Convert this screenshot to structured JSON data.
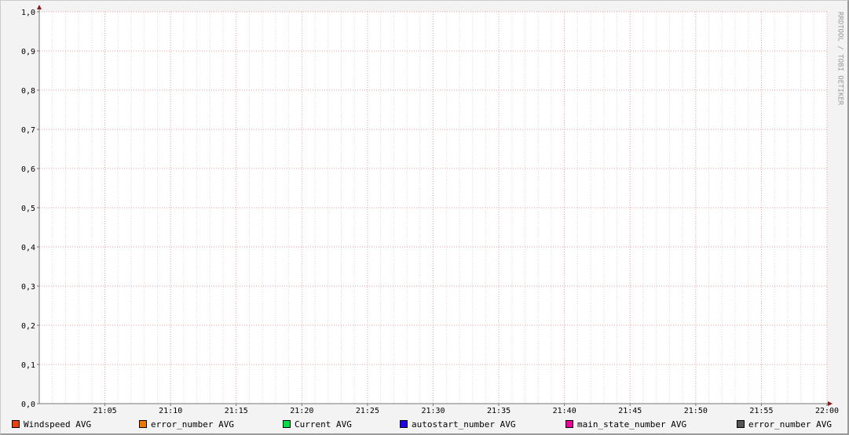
{
  "chart_data": {
    "type": "line",
    "x_ticks": [
      "21:05",
      "21:10",
      "21:15",
      "21:20",
      "21:25",
      "21:30",
      "21:35",
      "21:40",
      "21:45",
      "21:50",
      "21:55",
      "22:00"
    ],
    "xlim": [
      "21:00",
      "22:00"
    ],
    "y_ticks": [
      "0,0",
      "0,1",
      "0,2",
      "0,3",
      "0,4",
      "0,5",
      "0,6",
      "0,7",
      "0,8",
      "0,9",
      "1,0"
    ],
    "ylim": [
      0,
      1
    ],
    "grid": true,
    "legend_position": "bottom",
    "watermark": "RRDTOOL / TOBI OETIKER",
    "series": [
      {
        "name": "Windspeed AVG",
        "color": "#E8400F",
        "values": []
      },
      {
        "name": "error_number AVG",
        "color": "#EC7800",
        "values": []
      },
      {
        "name": "Current AVG",
        "color": "#00E040",
        "values": []
      },
      {
        "name": "autostart_number AVG",
        "color": "#2200E8",
        "values": []
      },
      {
        "name": "main_state_number AVG",
        "color": "#EE0099",
        "values": []
      },
      {
        "name": "error_number AVG",
        "color": "#555555",
        "values": []
      }
    ]
  }
}
